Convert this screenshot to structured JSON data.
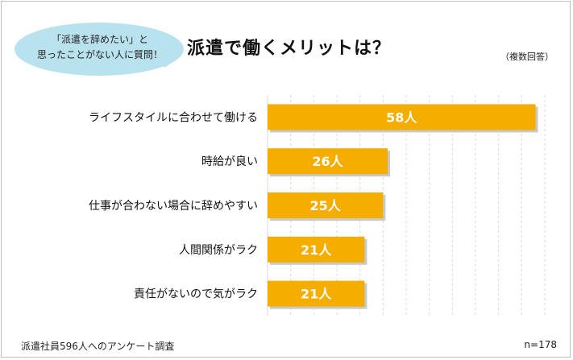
{
  "header": {
    "bubble_line1": "「派遣を辞めたい」と",
    "bubble_line2": "思ったことがない人に質問！",
    "title": "派遣で働くメリットは？",
    "note": "（複数回答）"
  },
  "footer": {
    "source": "派遣社員596人へのアンケート調査",
    "sample": "n=178"
  },
  "colors": {
    "bar": "#f5ad00",
    "bar_shadow": "#c9c9c9",
    "bubble": "#b9e2ef",
    "grid": "#d9d9d9"
  },
  "chart_data": {
    "type": "bar",
    "orientation": "horizontal",
    "categories": [
      "ライフスタイルに合わせて働ける",
      "時給が良い",
      "仕事が合わない場合に辞めやすい",
      "人間関係がラク",
      "責任がないので気がラク"
    ],
    "values": [
      58,
      26,
      25,
      21,
      21
    ],
    "data_labels": [
      "58人",
      "26人",
      "25人",
      "21人",
      "21人"
    ],
    "xlim": [
      0,
      60
    ],
    "grid": true
  }
}
